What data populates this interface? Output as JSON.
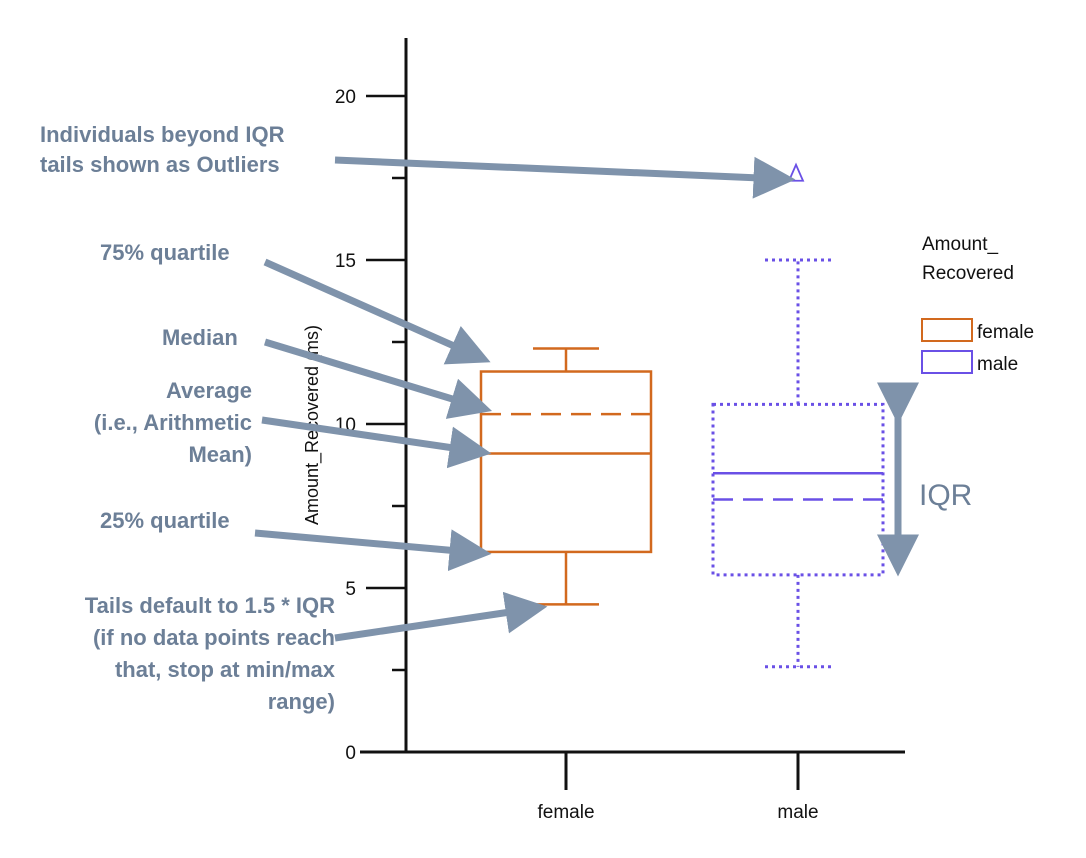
{
  "chart_data": {
    "type": "box",
    "ylabel": "Amount_Recovered (ms)",
    "ylim": [
      0,
      22
    ],
    "yticks_major": [
      0,
      5,
      10,
      15,
      20
    ],
    "yticks_minor": [
      2.5,
      7.5,
      12.5,
      17.5
    ],
    "categories": [
      "female",
      "male"
    ],
    "series": [
      {
        "name": "female",
        "color": "#d2691e",
        "line_style": "solid",
        "whisker_low": 4.5,
        "q1": 6.1,
        "median": 9.1,
        "mean": 10.3,
        "q3": 11.6,
        "whisker_high": 12.3,
        "outliers": []
      },
      {
        "name": "male",
        "color": "#6a50e6",
        "line_style": "dotted",
        "whisker_low": 2.6,
        "q1": 5.4,
        "median": 8.5,
        "mean": 7.7,
        "q3": 10.6,
        "whisker_high": 15.0,
        "outliers": [
          17.6
        ]
      }
    ],
    "legend": {
      "title_lines": [
        "Amount_",
        "Recovered"
      ],
      "entries": [
        "female",
        "male"
      ],
      "position": "right"
    },
    "iqr_label": "IQR",
    "annotations": [
      {
        "lines": [
          "Individuals beyond IQR",
          "tails shown as Outliers"
        ]
      },
      {
        "lines": [
          "75% quartile"
        ]
      },
      {
        "lines": [
          "Median"
        ]
      },
      {
        "lines": [
          "Average",
          "(i.e., Arithmetic",
          "Mean)"
        ]
      },
      {
        "lines": [
          "25% quartile"
        ]
      },
      {
        "lines": [
          "Tails default to 1.5 * IQR",
          "(if no data points reach",
          "that, stop at min/max",
          "range)"
        ]
      }
    ]
  }
}
